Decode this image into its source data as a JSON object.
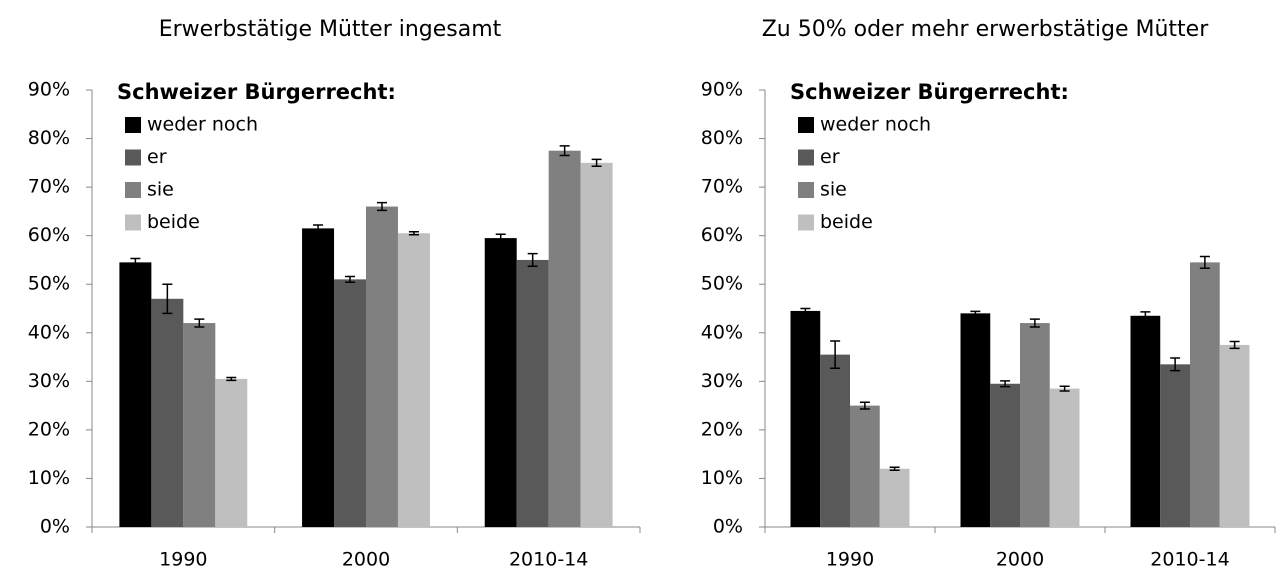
{
  "chart_data": [
    {
      "type": "bar",
      "title": "Erwerbstätige Mütter ingesamt",
      "legend_title": "Schweizer Bürgerrecht:",
      "categories": [
        "1990",
        "2000",
        "2010-14"
      ],
      "series": [
        {
          "name": "weder noch",
          "color": "#000000",
          "values": [
            54.5,
            61.5,
            59.5
          ],
          "errors": [
            0.8,
            0.7,
            0.8
          ]
        },
        {
          "name": "er",
          "color": "#595959",
          "values": [
            47,
            51,
            55
          ],
          "errors": [
            3,
            0.6,
            1.3
          ]
        },
        {
          "name": "sie",
          "color": "#808080",
          "values": [
            42,
            66,
            77.5
          ],
          "errors": [
            0.8,
            0.8,
            1
          ]
        },
        {
          "name": "beide",
          "color": "#bfbfbf",
          "values": [
            30.5,
            60.5,
            75
          ],
          "errors": [
            0.3,
            0.3,
            0.7
          ]
        }
      ],
      "ylim": [
        0,
        90
      ],
      "yticks": [
        {
          "value": 0,
          "label": "0%"
        },
        {
          "value": 10,
          "label": "10%"
        },
        {
          "value": 20,
          "label": "20%"
        },
        {
          "value": 30,
          "label": "30%"
        },
        {
          "value": 40,
          "label": "40%"
        },
        {
          "value": 50,
          "label": "50%"
        },
        {
          "value": 60,
          "label": "60%"
        },
        {
          "value": 70,
          "label": "70%"
        },
        {
          "value": 80,
          "label": "80%"
        },
        {
          "value": 90,
          "label": "90%"
        }
      ],
      "legend": "upper left"
    },
    {
      "type": "bar",
      "title": "Zu 50% oder mehr erwerbstätige Mütter",
      "legend_title": "Schweizer Bürgerrecht:",
      "categories": [
        "1990",
        "2000",
        "2010-14"
      ],
      "series": [
        {
          "name": "weder noch",
          "color": "#000000",
          "values": [
            44.5,
            44,
            43.5
          ],
          "errors": [
            0.5,
            0.4,
            0.8
          ]
        },
        {
          "name": "er",
          "color": "#595959",
          "values": [
            35.5,
            29.5,
            33.5
          ],
          "errors": [
            2.8,
            0.6,
            1.3
          ]
        },
        {
          "name": "sie",
          "color": "#808080",
          "values": [
            25,
            42,
            54.5
          ],
          "errors": [
            0.7,
            0.8,
            1.2
          ]
        },
        {
          "name": "beide",
          "color": "#bfbfbf",
          "values": [
            12,
            28.5,
            37.5
          ],
          "errors": [
            0.3,
            0.5,
            0.7
          ]
        }
      ],
      "ylim": [
        0,
        90
      ],
      "yticks": [
        {
          "value": 0,
          "label": "0%"
        },
        {
          "value": 10,
          "label": "10%"
        },
        {
          "value": 20,
          "label": "20%"
        },
        {
          "value": 30,
          "label": "30%"
        },
        {
          "value": 40,
          "label": "40%"
        },
        {
          "value": 50,
          "label": "50%"
        },
        {
          "value": 60,
          "label": "60%"
        },
        {
          "value": 70,
          "label": "70%"
        },
        {
          "value": 80,
          "label": "80%"
        },
        {
          "value": 90,
          "label": "90%"
        }
      ],
      "legend": "upper left"
    }
  ]
}
